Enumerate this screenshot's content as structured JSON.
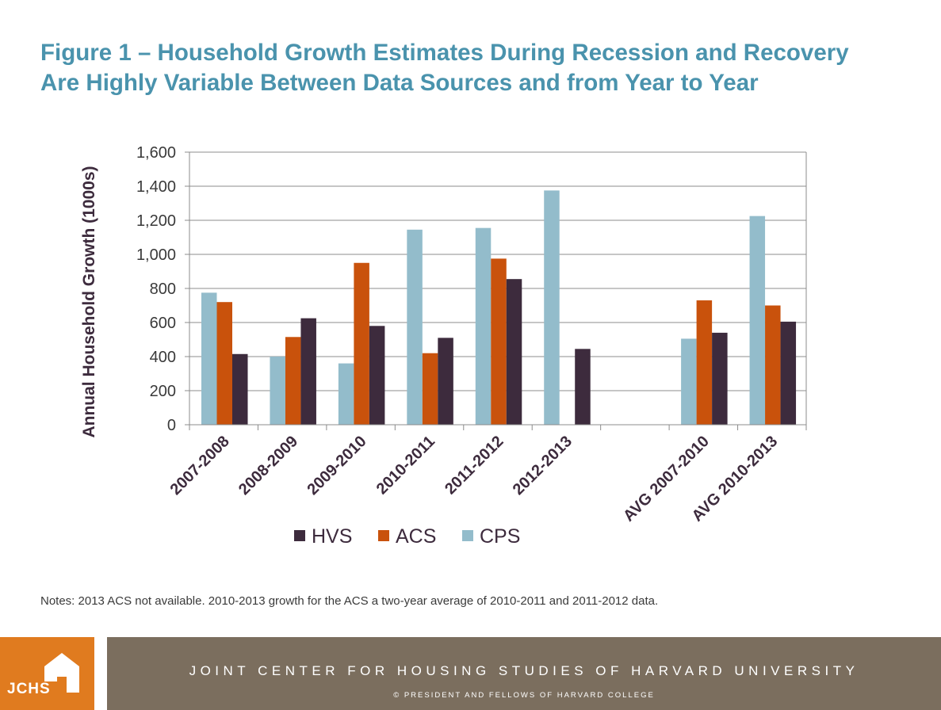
{
  "header": {
    "title_line1": "Figure 1 – Household Growth Estimates During Recession and Recovery",
    "title_line2": "Are Highly Variable Between Data Sources and from Year to Year"
  },
  "chart_data": {
    "type": "bar",
    "title": "Figure 1 – Household Growth Estimates During Recession and Recovery Are Highly Variable Between Data Sources and from Year to Year",
    "xlabel": "",
    "ylabel": "Annual Household Growth (1000s)",
    "ylim": [
      0,
      1600
    ],
    "yticks": [
      0,
      200,
      400,
      600,
      800,
      1000,
      1200,
      1400,
      1600
    ],
    "ytick_labels": [
      "0",
      "200",
      "400",
      "600",
      "800",
      "1,000",
      "1,200",
      "1,400",
      "1,600"
    ],
    "grid": true,
    "legend_position": "bottom",
    "categories": [
      "2007-2008",
      "2008-2009",
      "2009-2010",
      "2010-2011",
      "2011-2012",
      "2012-2013",
      "",
      "AVG 2007-2010",
      "AVG 2010-2013"
    ],
    "series": [
      {
        "name": "CPS",
        "color": "#93bccb",
        "values": [
          775,
          400,
          360,
          1145,
          1155,
          1375,
          null,
          505,
          1225
        ]
      },
      {
        "name": "ACS",
        "color": "#c9520c",
        "values": [
          720,
          515,
          950,
          420,
          975,
          null,
          null,
          730,
          700
        ]
      },
      {
        "name": "HVS",
        "color": "#3d2b3d",
        "values": [
          415,
          625,
          580,
          510,
          855,
          445,
          null,
          540,
          605
        ]
      }
    ],
    "legend_order": [
      "HVS",
      "ACS",
      "CPS"
    ]
  },
  "notes": {
    "text": "Notes: 2013 ACS not available.  2010-2013 growth for the ACS a two-year average of 2010-2011 and 2011-2012 data."
  },
  "footer": {
    "logo_text": "JCHS",
    "organization": "JOINT CENTER FOR HOUSING STUDIES OF HARVARD UNIVERSITY",
    "copyright": "© PRESIDENT AND FELLOWS OF HARVARD COLLEGE"
  },
  "colors": {
    "title": "#4a93ad",
    "footer_orange": "#e07b1f",
    "footer_brown": "#7b6e5e"
  }
}
